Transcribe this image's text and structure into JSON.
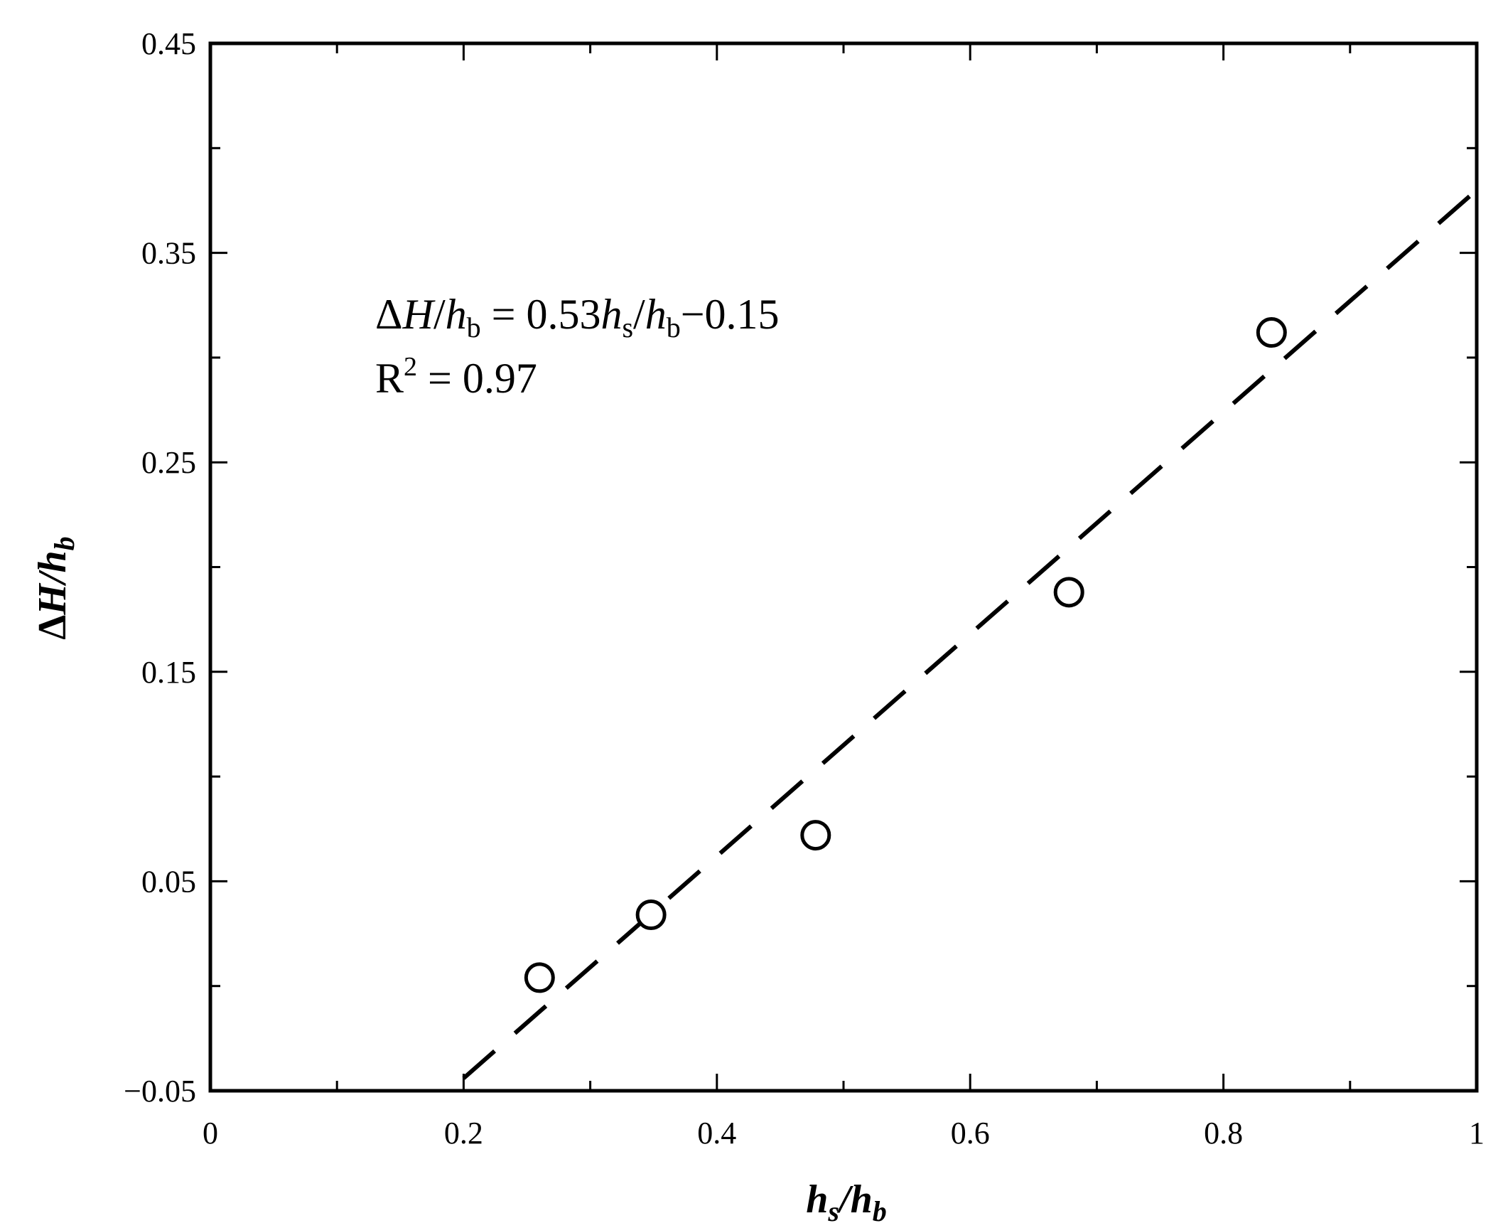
{
  "chart_data": {
    "type": "scatter",
    "xlim": [
      0,
      1
    ],
    "ylim": [
      -0.05,
      0.45
    ],
    "x_ticks": [
      0,
      0.2,
      0.4,
      0.6,
      0.8,
      1
    ],
    "x_tick_labels": [
      "0",
      "0.2",
      "0.4",
      "0.6",
      "0.8",
      "1"
    ],
    "x_minor_ticks": [
      0.1,
      0.3,
      0.5,
      0.7,
      0.9
    ],
    "y_ticks": [
      -0.05,
      0.05,
      0.15,
      0.25,
      0.35,
      0.45
    ],
    "y_tick_labels": [
      "−0.05",
      "0.05",
      "0.15",
      "0.25",
      "0.35",
      "0.45"
    ],
    "y_minor_ticks": [
      0.0,
      0.1,
      0.2,
      0.3,
      0.4
    ],
    "xlabel": {
      "main": "h",
      "sub": "s",
      "slash": "/",
      "main2": "h",
      "sub2": "b"
    },
    "ylabel": {
      "delta": "Δ",
      "main": "H",
      "slash": "/",
      "main2": "h",
      "sub2": "b"
    },
    "grid": false,
    "series": [
      {
        "points": [
          {
            "x": 0.26,
            "y": 0.004
          },
          {
            "x": 0.348,
            "y": 0.034
          },
          {
            "x": 0.478,
            "y": 0.072
          },
          {
            "x": 0.678,
            "y": 0.188
          },
          {
            "x": 0.838,
            "y": 0.312
          }
        ],
        "marker": "open-circle",
        "color": "#000000"
      }
    ],
    "fit_line": {
      "slope": 0.53,
      "intercept": -0.15,
      "x_range": [
        0.2,
        1.0
      ],
      "style": "dashed",
      "color": "#000000"
    },
    "annotation": {
      "eq_delta": "Δ",
      "eq_H": "H",
      "eq_slash1": "/",
      "eq_h1": "h",
      "eq_b1": "b",
      "eq_mid": " = 0.53",
      "eq_h2": "h",
      "eq_s": "s",
      "eq_slash2": "/",
      "eq_h3": "h",
      "eq_b2": "b",
      "eq_end": "−0.15",
      "r2_R": "R",
      "r2_sup": "2",
      "r2_rest": " = 0.97"
    }
  }
}
